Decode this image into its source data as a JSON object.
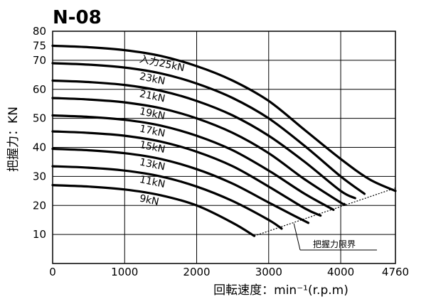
{
  "chart_data": {
    "type": "line",
    "title": "N-08",
    "xlabel": "回転速度：min⁻¹(r.p.m)",
    "ylabel": "把握力：KN",
    "xlim": [
      0,
      4760
    ],
    "ylim": [
      0,
      80
    ],
    "x_ticks": [
      "0",
      "1000",
      "2000",
      "3000",
      "4000",
      "4760"
    ],
    "y_ticks": [
      "10",
      "20",
      "30",
      "40",
      "50",
      "60",
      "70",
      "75",
      "80"
    ],
    "grid": true,
    "series": [
      {
        "name": "入力25kN",
        "x": [
          0,
          500,
          1000,
          1500,
          2000,
          2500,
          3000,
          3500,
          4000,
          4400,
          4760
        ],
        "y": [
          75,
          74.5,
          73.5,
          71.5,
          68,
          63,
          56,
          46,
          36,
          29,
          25
        ]
      },
      {
        "name": "23kN",
        "x": [
          0,
          500,
          1000,
          1500,
          2000,
          2500,
          3000,
          3500,
          4000,
          4330
        ],
        "y": [
          69,
          68.5,
          67.5,
          65.5,
          62,
          57,
          50,
          40.5,
          30,
          24
        ]
      },
      {
        "name": "21kN",
        "x": [
          0,
          500,
          1000,
          1500,
          2000,
          2500,
          3000,
          3500,
          4000,
          4200
        ],
        "y": [
          63,
          62.5,
          61.5,
          59.5,
          56,
          51,
          44,
          35,
          25,
          22.5
        ]
      },
      {
        "name": "19kN",
        "x": [
          0,
          500,
          1000,
          1500,
          2000,
          2500,
          3000,
          3500,
          4000,
          4050
        ],
        "y": [
          57,
          56.5,
          55.5,
          53.5,
          50,
          45,
          38,
          29,
          21,
          20.5
        ]
      },
      {
        "name": "17kN",
        "x": [
          0,
          500,
          1000,
          1500,
          2000,
          2500,
          3000,
          3500,
          3900
        ],
        "y": [
          51,
          50.5,
          49.5,
          47.5,
          44,
          39,
          32,
          24,
          18.5
        ]
      },
      {
        "name": "15kN",
        "x": [
          0,
          500,
          1000,
          1500,
          2000,
          2500,
          3000,
          3500,
          3720
        ],
        "y": [
          45.5,
          45,
          44,
          42,
          38.5,
          33.5,
          26.5,
          19,
          16.5
        ]
      },
      {
        "name": "13kN",
        "x": [
          0,
          500,
          1000,
          1500,
          2000,
          2500,
          3000,
          3350,
          3550
        ],
        "y": [
          39.5,
          39,
          38,
          36,
          32.5,
          27.5,
          21,
          16.5,
          14
        ]
      },
      {
        "name": "11kN",
        "x": [
          0,
          500,
          1000,
          1500,
          2000,
          2500,
          3000,
          3180
        ],
        "y": [
          33.5,
          33,
          32,
          30,
          26.5,
          21.5,
          15,
          12
        ]
      },
      {
        "name": "9kN",
        "x": [
          0,
          500,
          1000,
          1500,
          2000,
          2500,
          2800
        ],
        "y": [
          27,
          26.5,
          25.5,
          23.5,
          20,
          14,
          9.5
        ]
      }
    ],
    "limit_line": {
      "name": "把握力限界",
      "x": [
        2800,
        4760
      ],
      "y": [
        9.5,
        26
      ]
    }
  }
}
